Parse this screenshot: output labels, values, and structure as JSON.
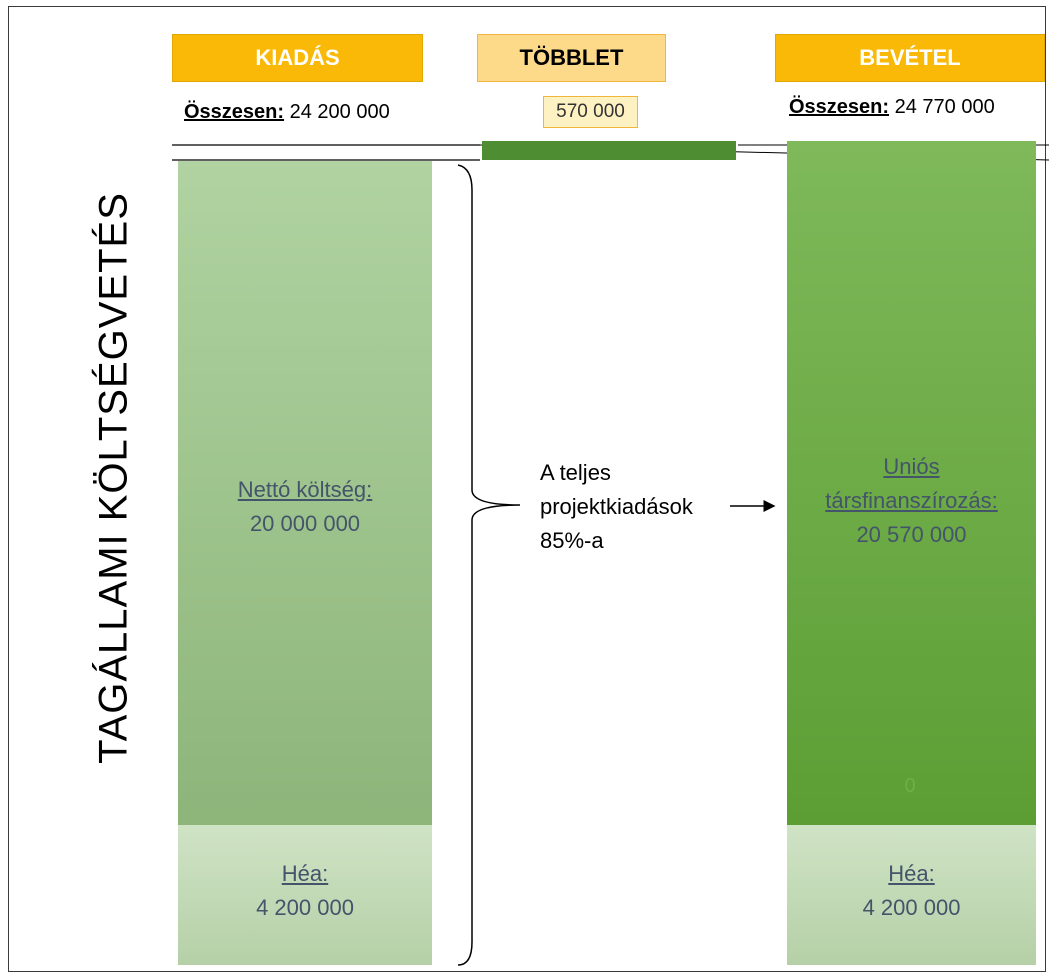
{
  "title": "TAGÁLLAMI KÖLTSÉGVETÉS",
  "columns": {
    "expense": {
      "header": "KIADÁS",
      "total_label": "Összesen:",
      "total_value": "24 200 000"
    },
    "surplus": {
      "header": "TÖBBLET",
      "value": "570 000"
    },
    "income": {
      "header": "BEVÉTEL",
      "total_label": "Összesen:",
      "total_value": "24 770 000"
    }
  },
  "expense_bar": {
    "net_label": "Nettó költség:",
    "net_value": "20 000 000",
    "vat_label": "Héa:",
    "vat_value": "4 200 000"
  },
  "income_bar": {
    "eu_label_line1": "Uniós",
    "eu_label_line2": "társfinanszírozás:",
    "eu_value": "20 570 000",
    "zero_label": "0",
    "vat_label": "Héa:",
    "vat_value": "4 200 000"
  },
  "annotation": {
    "line1": "A teljes",
    "line2": "projektkiadások",
    "line3": "85%-a"
  },
  "colors": {
    "header_gold": "#f9b906",
    "header_pale": "#fdd98a",
    "expense_green": "#9cc58c",
    "income_green": "#6aaa44",
    "surplus_bar": "#4f8d32",
    "vat_green": "#c8dfbd",
    "label_blue": "#44546a"
  }
}
